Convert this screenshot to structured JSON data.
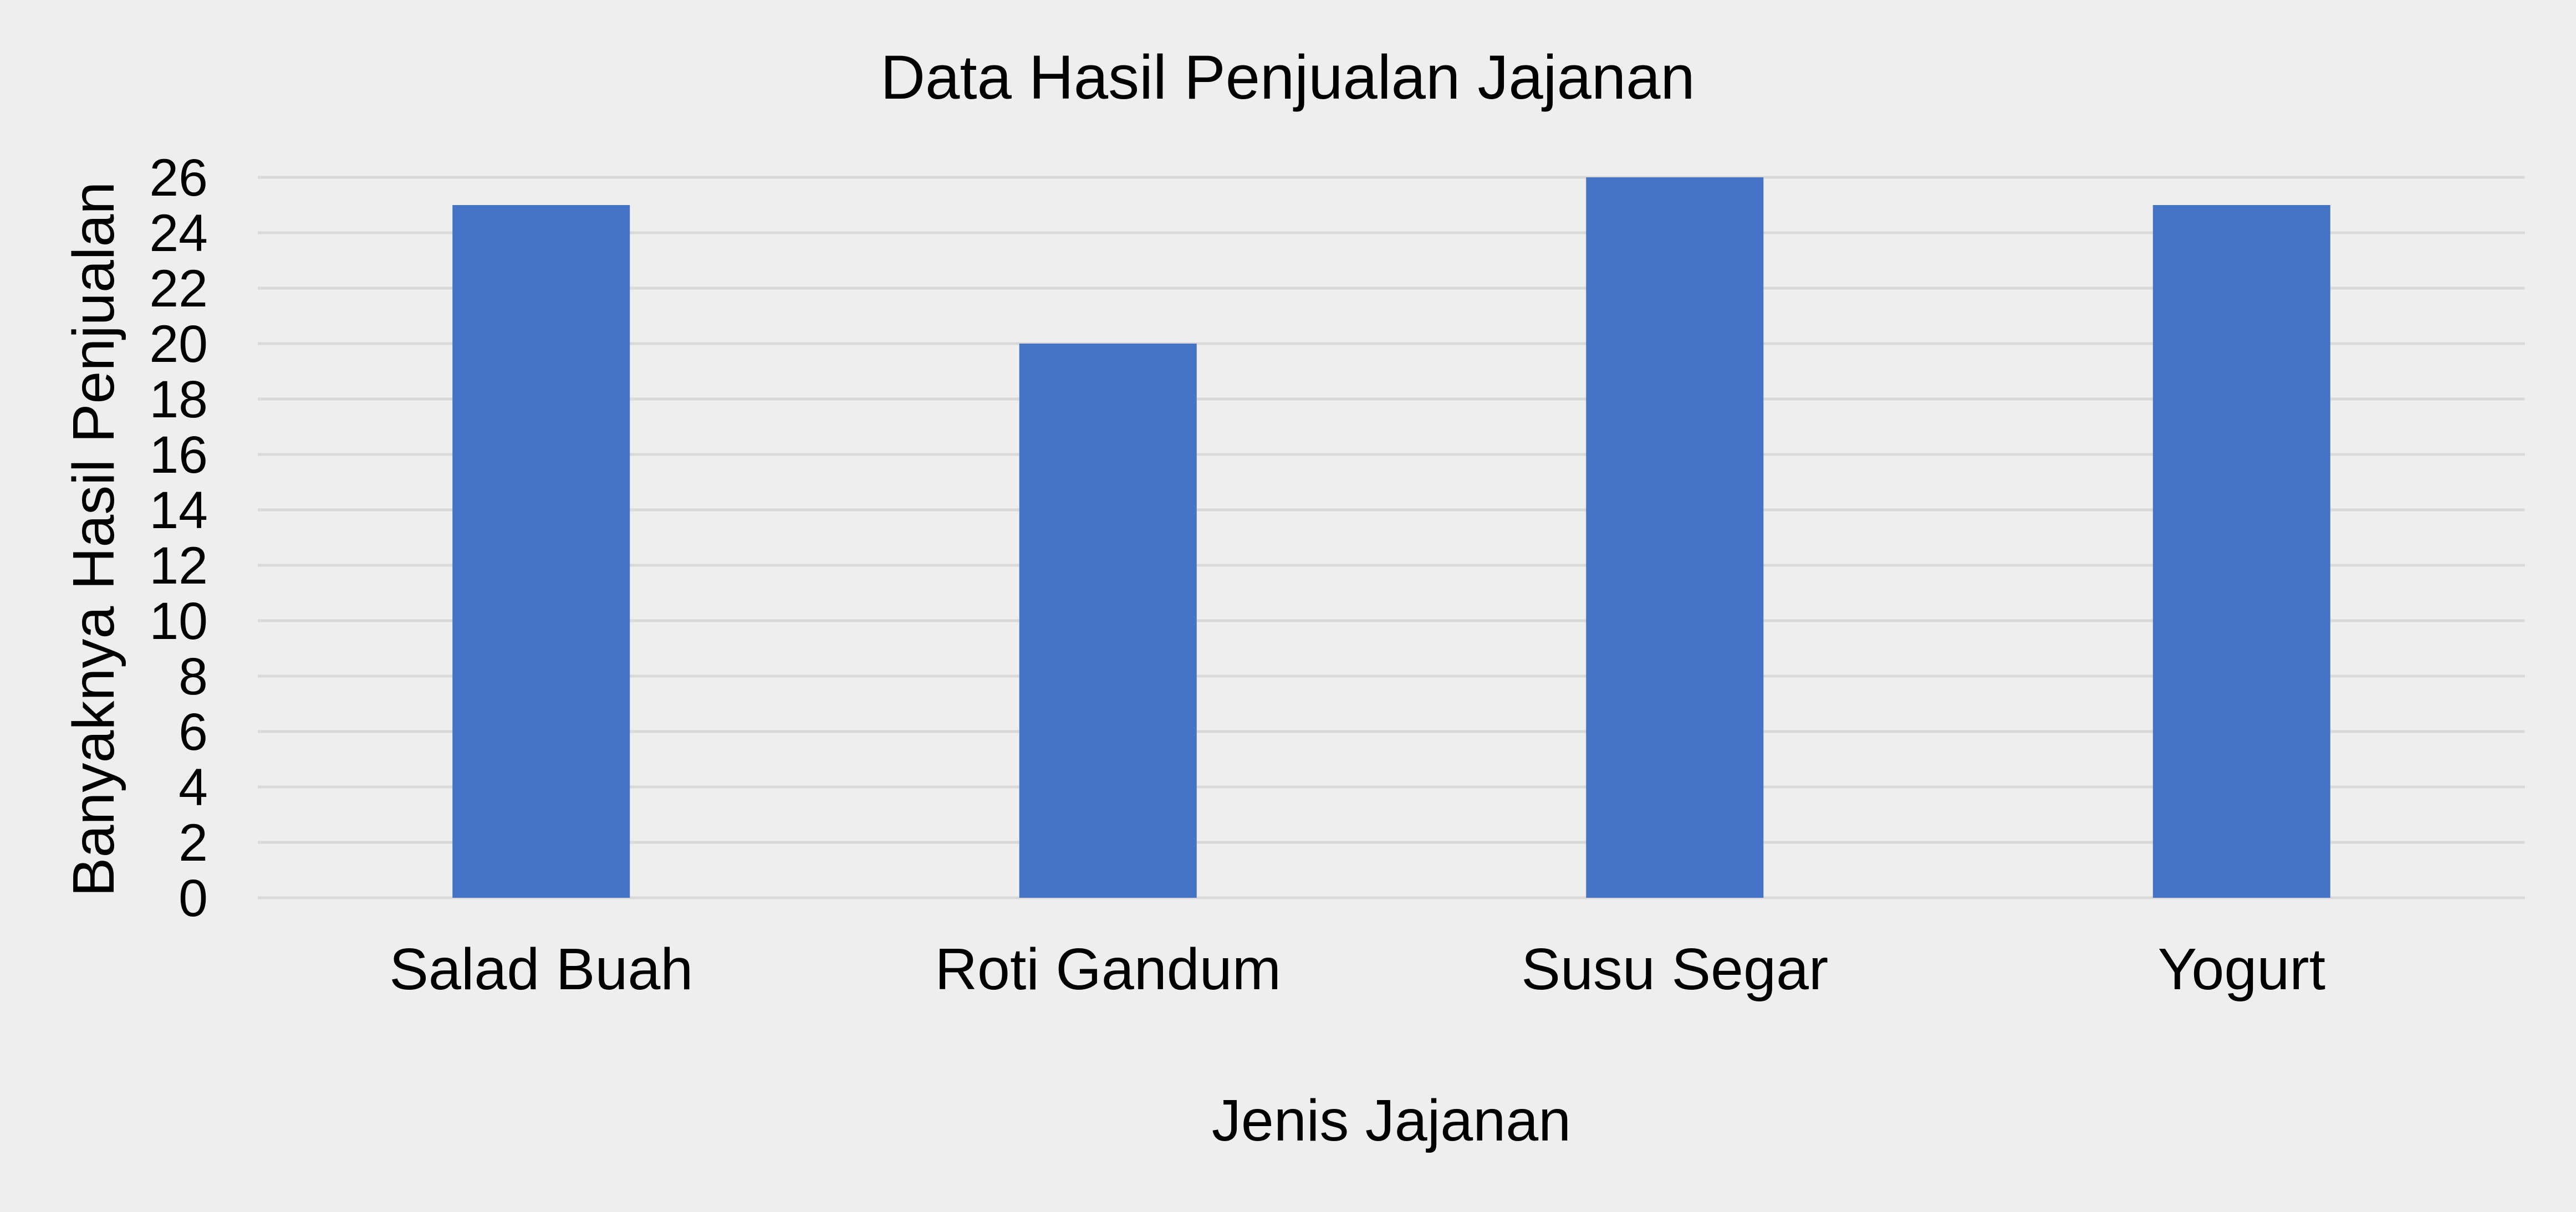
{
  "chart_data": {
    "type": "bar",
    "title": "Data Hasil Penjualan Jajanan",
    "xlabel": "Jenis Jajanan",
    "ylabel": "Banyaknya Hasil Penjualan",
    "categories": [
      "Salad Buah",
      "Roti Gandum",
      "Susu Segar",
      "Yogurt"
    ],
    "values": [
      25,
      20,
      26,
      25
    ],
    "ylim": [
      0,
      26
    ],
    "yticks": [
      "0",
      "2",
      "4",
      "6",
      "8",
      "10",
      "12",
      "14",
      "16",
      "18",
      "20",
      "22",
      "24",
      "26"
    ],
    "grid": true,
    "legend": "none",
    "bar_color": "#4472c4",
    "grid_color": "#d9d9d9",
    "background_color": "#eeeeee"
  }
}
